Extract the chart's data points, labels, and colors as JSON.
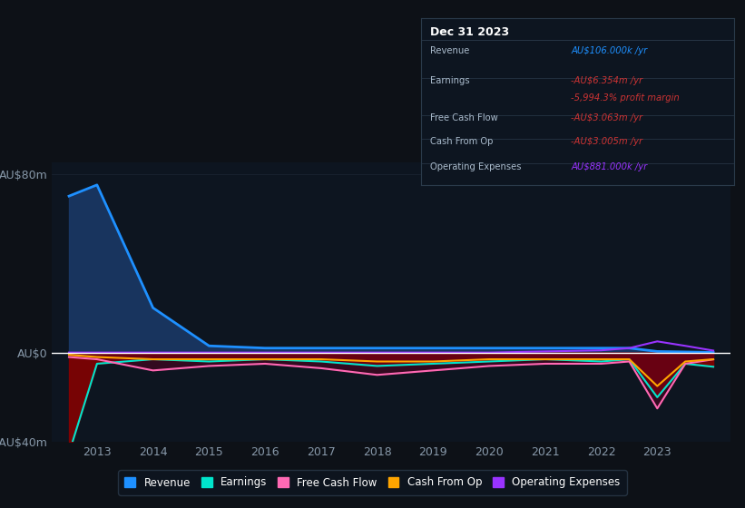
{
  "bg_color": "#0d1117",
  "plot_bg_color": "#0d1520",
  "title_box_border": "#2a3a4a",
  "title": "Dec 31 2023",
  "ylabel_top": "AU$80m",
  "ylabel_zero": "AU$0",
  "ylabel_bottom": "-AU$40m",
  "ylim": [
    -40,
    85
  ],
  "years": [
    2012.5,
    2013,
    2014,
    2015,
    2016,
    2017,
    2018,
    2019,
    2020,
    2021,
    2022,
    2022.5,
    2023,
    2023.5,
    2024
  ],
  "revenue": [
    70,
    75,
    20,
    3,
    2,
    2,
    2,
    2,
    2,
    2,
    2,
    2,
    0.5,
    0.3,
    0.106
  ],
  "earnings": [
    -45,
    -5,
    -3,
    -4,
    -3,
    -4,
    -6,
    -5,
    -4,
    -3,
    -4,
    -3,
    -20,
    -5,
    -6.354
  ],
  "free_cash_flow": [
    -2,
    -3,
    -8,
    -6,
    -5,
    -7,
    -10,
    -8,
    -6,
    -5,
    -5,
    -4,
    -25,
    -5,
    -3.063
  ],
  "cash_from_op": [
    -1,
    -2,
    -3,
    -3,
    -3,
    -3,
    -4,
    -4,
    -3,
    -3,
    -3,
    -3,
    -15,
    -4,
    -3.005
  ],
  "op_expenses": [
    0,
    0,
    0,
    0,
    0,
    0,
    0,
    0,
    0,
    0.5,
    1,
    2,
    5,
    3,
    0.881
  ],
  "revenue_color": "#1e90ff",
  "revenue_fill": "#1a3a6a",
  "earnings_color": "#00e5cc",
  "earnings_fill": "#8b0000",
  "fcf_fill": "#5a0020",
  "free_cash_flow_color": "#ff69b4",
  "cash_from_op_color": "#ffa500",
  "op_expenses_color": "#9933ff",
  "zero_line_color": "#ffffff",
  "grid_color": "#2a3a4a",
  "tick_color": "#8899aa",
  "legend_items": [
    {
      "label": "Revenue",
      "color": "#1e90ff"
    },
    {
      "label": "Earnings",
      "color": "#00e5cc"
    },
    {
      "label": "Free Cash Flow",
      "color": "#ff69b4"
    },
    {
      "label": "Cash From Op",
      "color": "#ffa500"
    },
    {
      "label": "Operating Expenses",
      "color": "#9933ff"
    }
  ],
  "table_rows": [
    {
      "label": "Revenue",
      "value": "AU$106.000k /yr",
      "sub": null,
      "vcolor": "#1e90ff"
    },
    {
      "label": "Earnings",
      "value": "-AU$6.354m /yr",
      "sub": "-5,994.3% profit margin",
      "vcolor": "#cc3333"
    },
    {
      "label": "Free Cash Flow",
      "value": "-AU$3.063m /yr",
      "sub": null,
      "vcolor": "#cc3333"
    },
    {
      "label": "Cash From Op",
      "value": "-AU$3.005m /yr",
      "sub": null,
      "vcolor": "#cc3333"
    },
    {
      "label": "Operating Expenses",
      "value": "AU$881.000k /yr",
      "sub": null,
      "vcolor": "#9933ff"
    }
  ]
}
